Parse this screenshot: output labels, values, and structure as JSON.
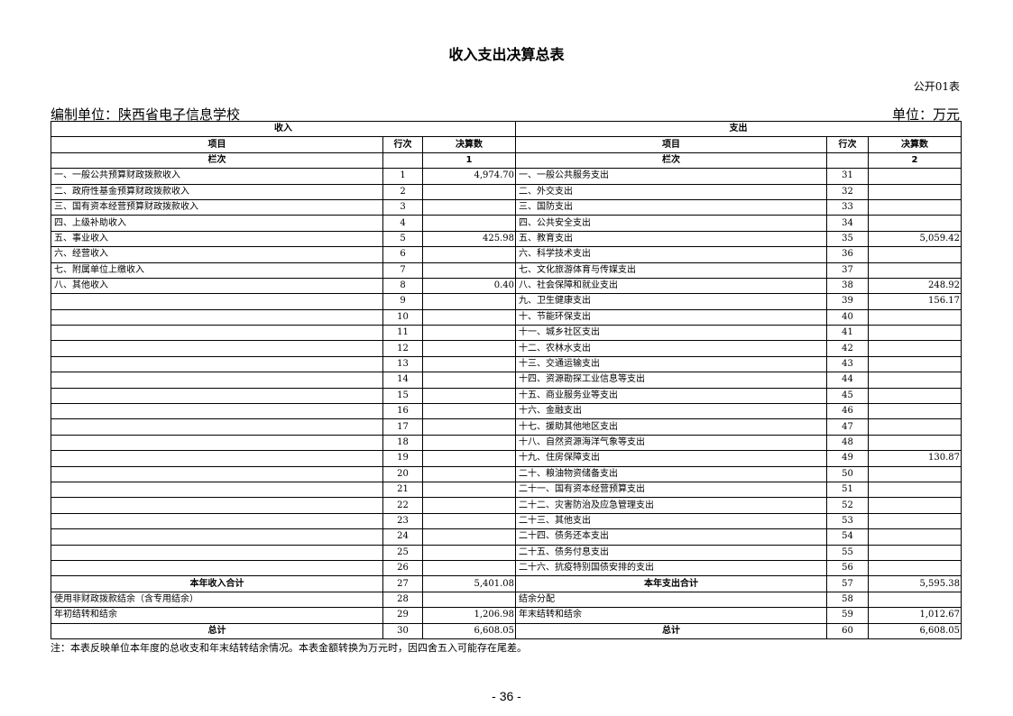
{
  "title": "收入支出决算总表",
  "form_no": "公开01表",
  "unit_org": "编制单位：陕西省电子信息学校",
  "unit_currency": "单位：万元",
  "header": {
    "income": "收入",
    "expense": "支出",
    "item": "项目",
    "line": "行次",
    "amount": "决算数",
    "col_label": "栏次",
    "income_col": "1",
    "expense_col": "2"
  },
  "rows": [
    {
      "li": "一、一般公共预算财政拨款收入",
      "ll": "1",
      "lv": "4,974.70",
      "ri": "一、一般公共服务支出",
      "rl": "31",
      "rv": ""
    },
    {
      "li": "二、政府性基金预算财政拨款收入",
      "ll": "2",
      "lv": "",
      "ri": "二、外交支出",
      "rl": "32",
      "rv": ""
    },
    {
      "li": "三、国有资本经营预算财政拨款收入",
      "ll": "3",
      "lv": "",
      "ri": "三、国防支出",
      "rl": "33",
      "rv": ""
    },
    {
      "li": "四、上级补助收入",
      "ll": "4",
      "lv": "",
      "ri": "四、公共安全支出",
      "rl": "34",
      "rv": ""
    },
    {
      "li": "五、事业收入",
      "ll": "5",
      "lv": "425.98",
      "ri": "五、教育支出",
      "rl": "35",
      "rv": "5,059.42"
    },
    {
      "li": "六、经营收入",
      "ll": "6",
      "lv": "",
      "ri": "六、科学技术支出",
      "rl": "36",
      "rv": ""
    },
    {
      "li": "七、附属单位上缴收入",
      "ll": "7",
      "lv": "",
      "ri": "七、文化旅游体育与传媒支出",
      "rl": "37",
      "rv": ""
    },
    {
      "li": "八、其他收入",
      "ll": "8",
      "lv": "0.40",
      "ri": "八、社会保障和就业支出",
      "rl": "38",
      "rv": "248.92"
    },
    {
      "li": "",
      "ll": "9",
      "lv": "",
      "ri": "九、卫生健康支出",
      "rl": "39",
      "rv": "156.17"
    },
    {
      "li": "",
      "ll": "10",
      "lv": "",
      "ri": "十、节能环保支出",
      "rl": "40",
      "rv": ""
    },
    {
      "li": "",
      "ll": "11",
      "lv": "",
      "ri": "十一、城乡社区支出",
      "rl": "41",
      "rv": ""
    },
    {
      "li": "",
      "ll": "12",
      "lv": "",
      "ri": "十二、农林水支出",
      "rl": "42",
      "rv": ""
    },
    {
      "li": "",
      "ll": "13",
      "lv": "",
      "ri": "十三、交通运输支出",
      "rl": "43",
      "rv": ""
    },
    {
      "li": "",
      "ll": "14",
      "lv": "",
      "ri": "十四、资源勘探工业信息等支出",
      "rl": "44",
      "rv": ""
    },
    {
      "li": "",
      "ll": "15",
      "lv": "",
      "ri": "十五、商业服务业等支出",
      "rl": "45",
      "rv": ""
    },
    {
      "li": "",
      "ll": "16",
      "lv": "",
      "ri": "十六、金融支出",
      "rl": "46",
      "rv": ""
    },
    {
      "li": "",
      "ll": "17",
      "lv": "",
      "ri": "十七、援助其他地区支出",
      "rl": "47",
      "rv": ""
    },
    {
      "li": "",
      "ll": "18",
      "lv": "",
      "ri": "十八、自然资源海洋气象等支出",
      "rl": "48",
      "rv": ""
    },
    {
      "li": "",
      "ll": "19",
      "lv": "",
      "ri": "十九、住房保障支出",
      "rl": "49",
      "rv": "130.87"
    },
    {
      "li": "",
      "ll": "20",
      "lv": "",
      "ri": "二十、粮油物资储备支出",
      "rl": "50",
      "rv": ""
    },
    {
      "li": "",
      "ll": "21",
      "lv": "",
      "ri": "二十一、国有资本经营预算支出",
      "rl": "51",
      "rv": ""
    },
    {
      "li": "",
      "ll": "22",
      "lv": "",
      "ri": "二十二、灾害防治及应急管理支出",
      "rl": "52",
      "rv": ""
    },
    {
      "li": "",
      "ll": "23",
      "lv": "",
      "ri": "二十三、其他支出",
      "rl": "53",
      "rv": ""
    },
    {
      "li": "",
      "ll": "24",
      "lv": "",
      "ri": "二十四、债务还本支出",
      "rl": "54",
      "rv": ""
    },
    {
      "li": "",
      "ll": "25",
      "lv": "",
      "ri": "二十五、债务付息支出",
      "rl": "55",
      "rv": ""
    },
    {
      "li": "",
      "ll": "26",
      "lv": "",
      "ri": "二十六、抗疫特别国债安排的支出",
      "rl": "56",
      "rv": ""
    },
    {
      "li": "本年收入合计",
      "ll": "27",
      "lv": "5,401.08",
      "ri": "本年支出合计",
      "rl": "57",
      "rv": "5,595.38",
      "bold": true
    },
    {
      "li": "使用非财政拨款结余（含专用结余）",
      "ll": "28",
      "lv": "",
      "ri": "结余分配",
      "rl": "58",
      "rv": ""
    },
    {
      "li": "年初结转和结余",
      "ll": "29",
      "lv": "1,206.98",
      "ri": "年末结转和结余",
      "rl": "59",
      "rv": "1,012.67"
    },
    {
      "li": "总计",
      "ll": "30",
      "lv": "6,608.05",
      "ri": "总计",
      "rl": "60",
      "rv": "6,608.05",
      "bold": true
    }
  ],
  "note": "注：本表反映单位本年度的总收支和年末结转结余情况。本表金额转换为万元时，因四舍五入可能存在尾差。",
  "page_number": "- 36 -"
}
